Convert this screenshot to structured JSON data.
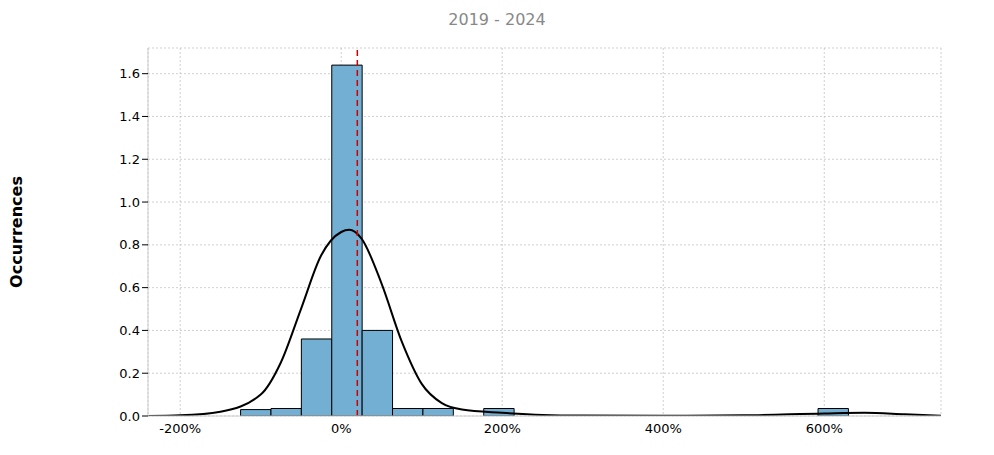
{
  "chart_data": {
    "type": "histogram",
    "subtitle": "2019 - 2024",
    "y_label": "Occurrences",
    "bins": [
      -125,
      -87.25,
      -49.5,
      -11.75,
      26,
      63.75,
      101.5,
      139.25,
      177,
      214.75,
      252.5,
      290.25,
      328,
      365.75,
      403.5,
      441.25,
      479,
      516.75,
      554.5,
      592.25,
      630
    ],
    "counts": [
      0.03,
      0.035,
      0.36,
      1.64,
      0.4,
      0.035,
      0.035,
      0,
      0.035,
      0,
      0,
      0,
      0,
      0,
      0,
      0,
      0,
      0,
      0,
      0.035
    ],
    "color": "#72afd3",
    "kde": {
      "x": [
        -240,
        -200,
        -150,
        -100,
        -75,
        -50,
        -25,
        0,
        10,
        25,
        50,
        75,
        100,
        125,
        150,
        200,
        250,
        300,
        400,
        500,
        600,
        650,
        700,
        745
      ],
      "values": [
        0,
        0.003,
        0.02,
        0.1,
        0.25,
        0.5,
        0.75,
        0.86,
        0.87,
        0.83,
        0.62,
        0.35,
        0.15,
        0.06,
        0.03,
        0.015,
        0.005,
        0.002,
        0.001,
        0.003,
        0.012,
        0.015,
        0.008,
        0.001
      ],
      "color": "#000000"
    },
    "mean": {
      "value": 20,
      "color": "#cc0000",
      "line_style": "dashed"
    },
    "xlim": [
      -240,
      745
    ],
    "xticks": [
      {
        "value": -200,
        "label": "-200%"
      },
      {
        "value": 0,
        "label": "0%"
      },
      {
        "value": 200,
        "label": "200%"
      },
      {
        "value": 400,
        "label": "400%"
      },
      {
        "value": 600,
        "label": "600%"
      }
    ],
    "ylim": [
      0,
      1.72
    ],
    "yticks": [
      {
        "value": 0,
        "label": "0.0"
      },
      0.2,
      0.4,
      0.6,
      0.8,
      {
        "value": 1,
        "label": "1.0"
      },
      1.2,
      1.4,
      1.6
    ],
    "grid": true
  }
}
